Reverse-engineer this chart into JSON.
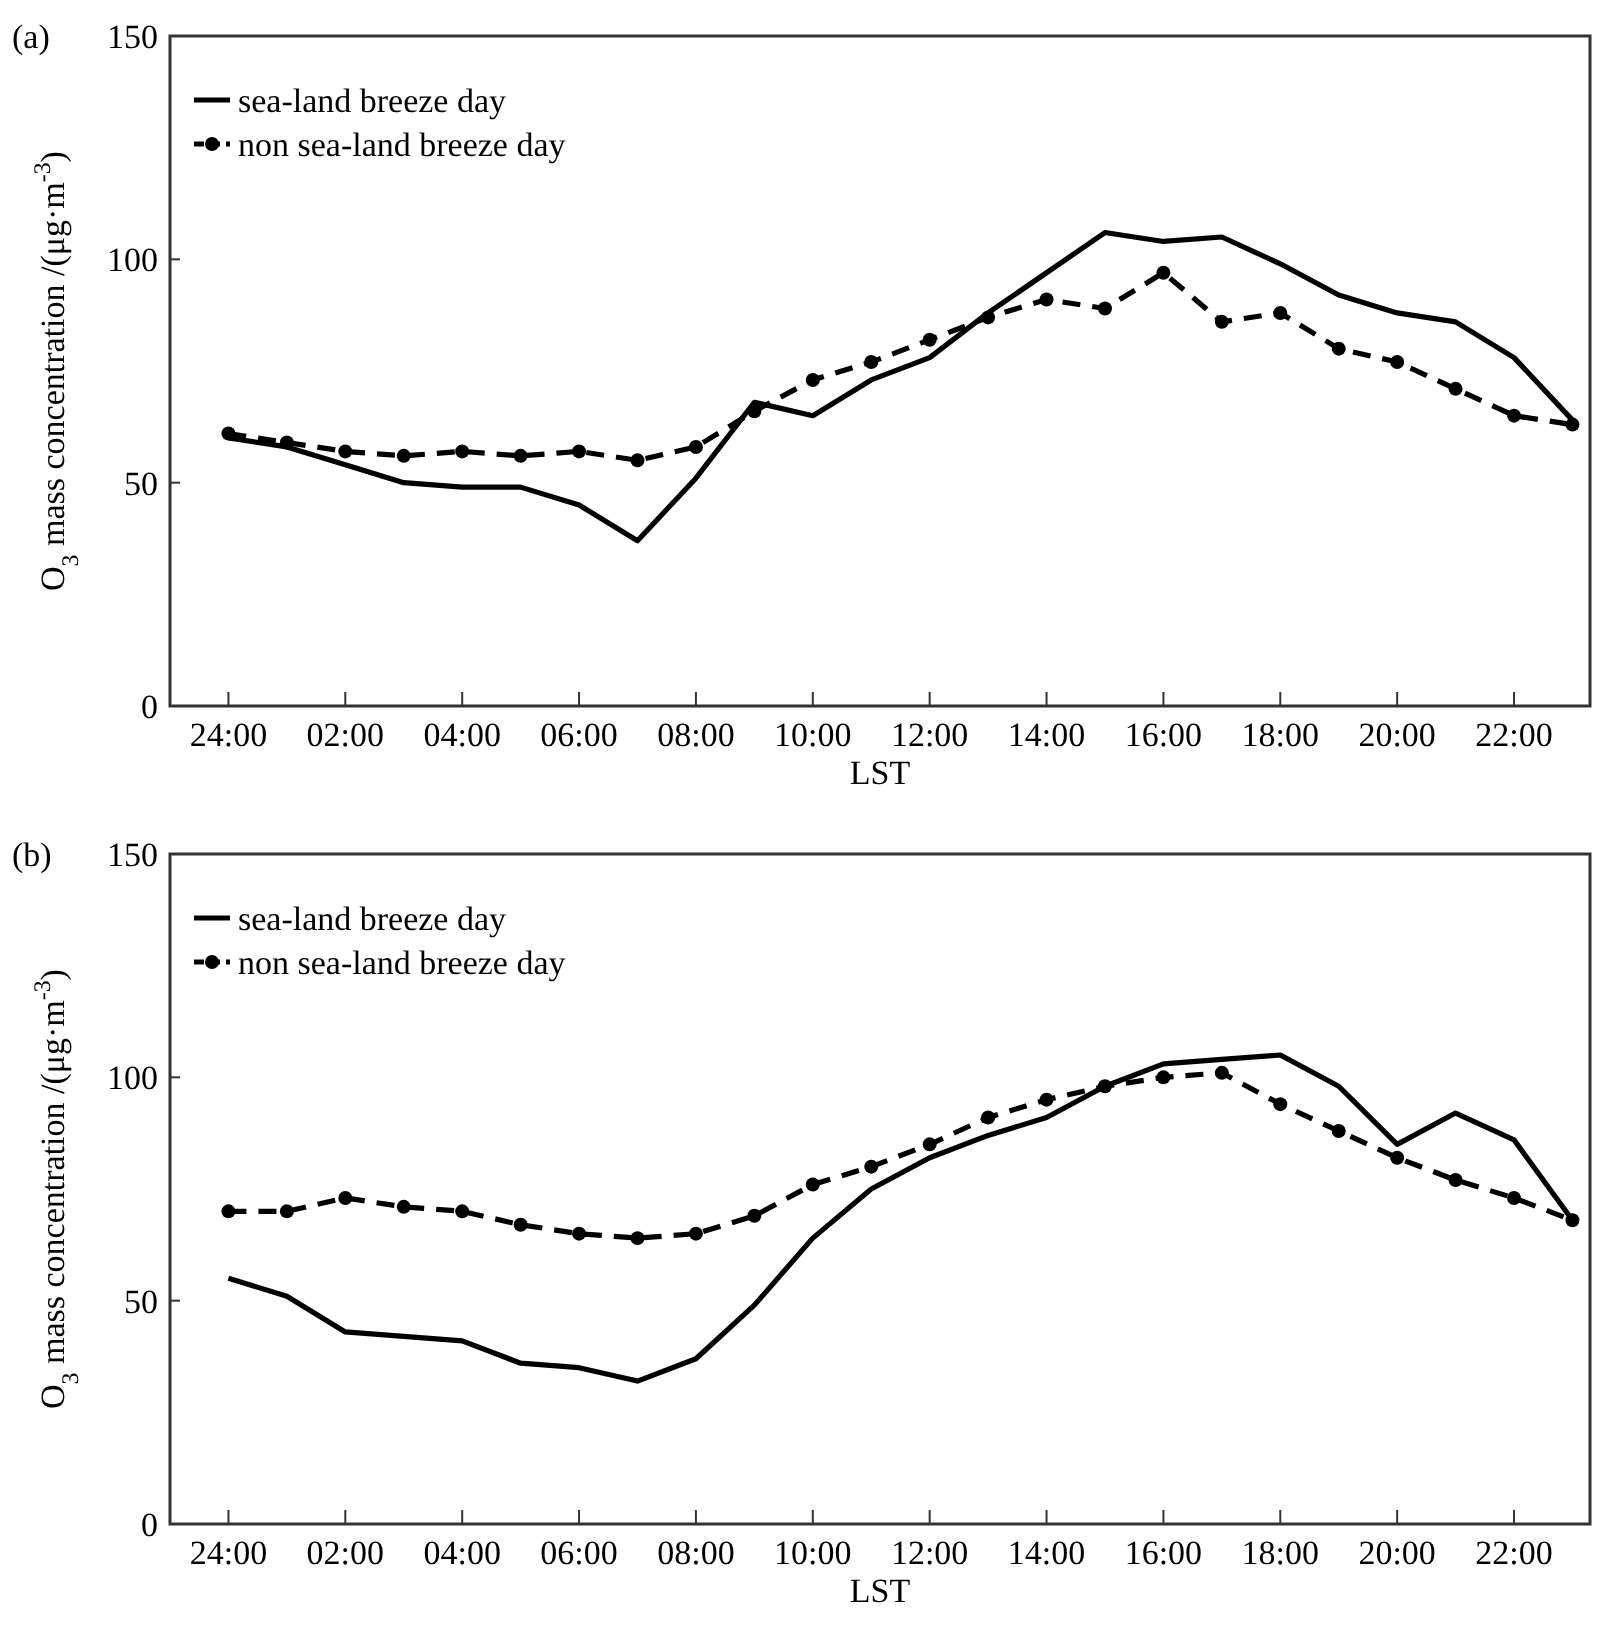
{
  "chart_data": [
    {
      "type": "line",
      "title": "(a)",
      "xlabel": "LST",
      "ylabel": "O$_{3}$ mass concentration /(μg·m$^{-3}$)",
      "categories": [
        "24:00",
        null,
        "02:00",
        null,
        "04:00",
        null,
        "06:00",
        null,
        "08:00",
        null,
        "10:00",
        null,
        "12:00",
        null,
        "14:00",
        null,
        "16:00",
        null,
        "18:00",
        null,
        "20:00",
        null,
        "22:00",
        null
      ],
      "ylim": [
        0,
        150
      ],
      "yticks": [
        0,
        50,
        100,
        150
      ],
      "legend": "top left",
      "grid": false,
      "series": [
        {
          "name": "sea-land breeze day",
          "color": "#000000",
          "line_style": "solid",
          "marker": "none",
          "values": [
            60,
            58,
            54,
            50,
            49,
            49,
            45,
            37,
            51,
            68,
            65,
            73,
            78,
            88,
            97,
            106,
            104,
            105,
            99,
            92,
            88,
            86,
            78,
            64
          ]
        },
        {
          "name": "non sea-land breeze day",
          "color": "#000000",
          "line_style": "dashed",
          "marker": "circle",
          "values": [
            61,
            59,
            57,
            56,
            57,
            56,
            57,
            55,
            58,
            66,
            73,
            77,
            82,
            87,
            91,
            89,
            97,
            86,
            88,
            80,
            77,
            71,
            65,
            63
          ]
        }
      ]
    },
    {
      "type": "line",
      "title": "(b)",
      "xlabel": "LST",
      "ylabel": "O$_{3}$ mass concentration /(μg·m$^{-3}$)",
      "categories": [
        "24:00",
        null,
        "02:00",
        null,
        "04:00",
        null,
        "06:00",
        null,
        "08:00",
        null,
        "10:00",
        null,
        "12:00",
        null,
        "14:00",
        null,
        "16:00",
        null,
        "18:00",
        null,
        "20:00",
        null,
        "22:00",
        null
      ],
      "ylim": [
        0,
        150
      ],
      "yticks": [
        0,
        50,
        100,
        150
      ],
      "legend": "top left",
      "grid": false,
      "series": [
        {
          "name": "sea-land breeze day",
          "color": "#000000",
          "line_style": "solid",
          "marker": "none",
          "values": [
            55,
            51,
            43,
            42,
            41,
            36,
            35,
            32,
            37,
            49,
            64,
            75,
            82,
            87,
            91,
            98,
            103,
            104,
            105,
            98,
            85,
            92,
            86,
            68
          ]
        },
        {
          "name": "non sea-land breeze day",
          "color": "#000000",
          "line_style": "dashed",
          "marker": "circle",
          "values": [
            70,
            70,
            73,
            71,
            70,
            67,
            65,
            64,
            65,
            69,
            76,
            80,
            85,
            91,
            95,
            98,
            100,
            101,
            94,
            88,
            82,
            77,
            73,
            68
          ]
        }
      ]
    }
  ]
}
